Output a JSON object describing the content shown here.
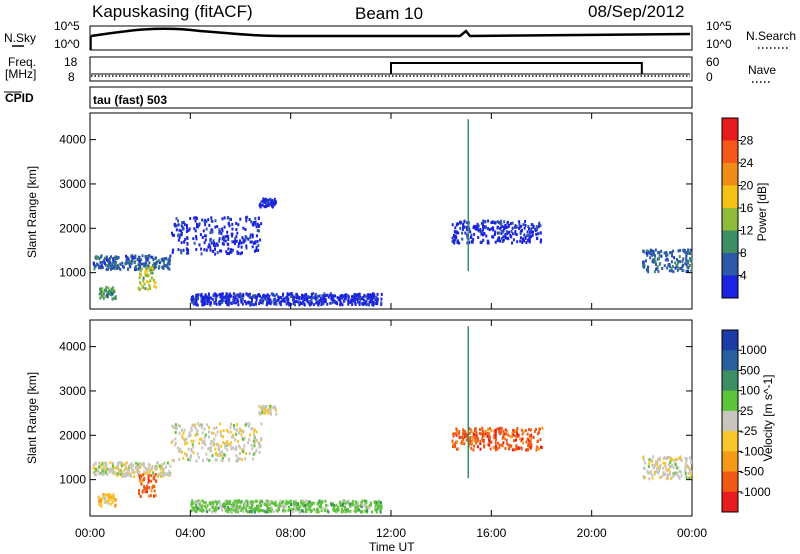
{
  "header": {
    "station": "Kapuskasing (fitACF)",
    "beam": "Beam 10",
    "date": "08/Sep/2012"
  },
  "panels": {
    "noise": {
      "left_label": "N.Sky",
      "left_ticks": [
        "10^5",
        "10^0"
      ],
      "right_ticks": [
        "10^5",
        "10^0"
      ],
      "right_label": "N.Search"
    },
    "freq": {
      "left_label_1": "Freq.",
      "left_label_2": "[MHz]",
      "left_ticks": [
        "18",
        "8"
      ],
      "right_ticks": [
        "60",
        "0"
      ],
      "right_label": "Nave"
    },
    "cpid": {
      "label": "CPID",
      "value": "tau (fast) 503"
    }
  },
  "chart_data": [
    {
      "type": "scatter",
      "name": "power",
      "ylabel": "Slant Range [km]",
      "ylim": [
        180,
        4600
      ],
      "yticks": [
        "4000",
        "3000",
        "2000",
        "1000"
      ],
      "yticks_values": [
        4000,
        3000,
        2000,
        1000
      ],
      "colorbar": {
        "label": "Power [dB]",
        "ticks": [
          "28",
          "24",
          "20",
          "16",
          "12",
          "8",
          "4"
        ],
        "colors": [
          "#e81c1c",
          "#f4591b",
          "#f08c18",
          "#f4c214",
          "#8fbb3a",
          "#3d8e62",
          "#2d5aa8",
          "#1c22e0"
        ]
      },
      "scatter_regions": [
        {
          "t0": 0.1,
          "t1": 3.2,
          "r0": 1100,
          "r1": 1420,
          "level": 1
        },
        {
          "t0": 3.2,
          "t1": 6.8,
          "r0": 1450,
          "r1": 2300,
          "level": 0
        },
        {
          "t0": 0.3,
          "t1": 1.0,
          "r0": 430,
          "r1": 700,
          "level": 2
        },
        {
          "t0": 1.9,
          "t1": 2.6,
          "r0": 650,
          "r1": 1150,
          "level": 3
        },
        {
          "t0": 4.0,
          "t1": 11.6,
          "r0": 300,
          "r1": 560,
          "level": 0
        },
        {
          "t0": 6.7,
          "t1": 7.4,
          "r0": 2500,
          "r1": 2700,
          "level": 0
        },
        {
          "t0": 14.4,
          "t1": 18.0,
          "r0": 1700,
          "r1": 2200,
          "level": 0
        },
        {
          "t0": 22.0,
          "t1": 23.95,
          "r0": 1050,
          "r1": 1550,
          "level": 1
        }
      ]
    },
    {
      "type": "scatter",
      "name": "velocity",
      "ylabel": "Slant Range [km]",
      "xlabel": "Time UT",
      "ylim": [
        180,
        4600
      ],
      "yticks": [
        "4000",
        "3000",
        "2000",
        "1000"
      ],
      "yticks_values": [
        4000,
        3000,
        2000,
        1000
      ],
      "xticks": [
        "00:00",
        "04:00",
        "08:00",
        "12:00",
        "16:00",
        "20:00",
        "00:00"
      ],
      "xticks_values": [
        0,
        4,
        8,
        12,
        16,
        20,
        24
      ],
      "colorbar": {
        "label": "Velocity [m s^-1]",
        "ticks": [
          "1000",
          "500",
          "100",
          "25",
          "-25",
          "-100",
          "-500",
          "-1000"
        ],
        "colors": [
          "#1c3aa8",
          "#2a5f9e",
          "#3d8e62",
          "#5dc43a",
          "#c8c6bc",
          "#f6c62a",
          "#f49a18",
          "#f05a14",
          "#e81c1c"
        ]
      },
      "scatter_regions": [
        {
          "t0": 0.1,
          "t1": 3.2,
          "r0": 1100,
          "r1": 1420,
          "level": 4
        },
        {
          "t0": 3.2,
          "t1": 6.8,
          "r0": 1450,
          "r1": 2300,
          "level": 4
        },
        {
          "t0": 0.3,
          "t1": 1.0,
          "r0": 430,
          "r1": 700,
          "level": 5
        },
        {
          "t0": 1.9,
          "t1": 2.6,
          "r0": 650,
          "r1": 1150,
          "level": 7
        },
        {
          "t0": 4.0,
          "t1": 11.6,
          "r0": 300,
          "r1": 560,
          "level": 3
        },
        {
          "t0": 6.7,
          "t1": 7.4,
          "r0": 2500,
          "r1": 2700,
          "level": 4
        },
        {
          "t0": 14.4,
          "t1": 18.0,
          "r0": 1700,
          "r1": 2200,
          "level": 7
        },
        {
          "t0": 22.0,
          "t1": 23.95,
          "r0": 1050,
          "r1": 1550,
          "level": 4
        }
      ]
    }
  ],
  "nave_step": {
    "start_time": 12.0,
    "end_time": 22.0,
    "start_value": 60
  }
}
